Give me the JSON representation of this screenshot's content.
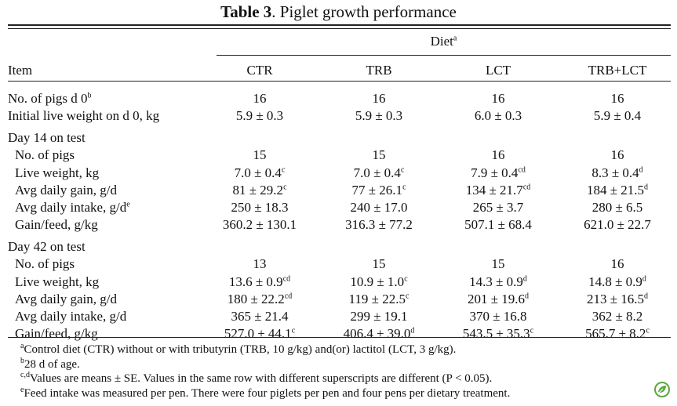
{
  "table": {
    "caption_label": "Table 3",
    "caption_text": ". Piglet growth performance",
    "diet_header": "Diet",
    "diet_header_sup": "a",
    "item_header": "Item",
    "columns": [
      "CTR",
      "TRB",
      "LCT",
      "TRB+LCT"
    ],
    "rows": [
      {
        "label": "No. of pigs d 0",
        "label_sup": "b",
        "indent": false,
        "cells": [
          {
            "v": "16",
            "s": ""
          },
          {
            "v": "16",
            "s": ""
          },
          {
            "v": "16",
            "s": ""
          },
          {
            "v": "16",
            "s": ""
          }
        ]
      },
      {
        "label": "Initial live weight on d 0, kg",
        "label_sup": "",
        "indent": false,
        "cells": [
          {
            "v": "5.9 ± 0.3",
            "s": ""
          },
          {
            "v": "5.9 ± 0.3",
            "s": ""
          },
          {
            "v": "6.0 ± 0.3",
            "s": ""
          },
          {
            "v": "5.9 ± 0.4",
            "s": ""
          }
        ]
      },
      {
        "label": "Day 14 on test",
        "label_sup": "",
        "indent": false,
        "cells": [
          {
            "v": "",
            "s": ""
          },
          {
            "v": "",
            "s": ""
          },
          {
            "v": "",
            "s": ""
          },
          {
            "v": "",
            "s": ""
          }
        ]
      },
      {
        "label": "No. of pigs",
        "label_sup": "",
        "indent": true,
        "cells": [
          {
            "v": "15",
            "s": ""
          },
          {
            "v": "15",
            "s": ""
          },
          {
            "v": "16",
            "s": ""
          },
          {
            "v": "16",
            "s": ""
          }
        ]
      },
      {
        "label": "Live weight, kg",
        "label_sup": "",
        "indent": true,
        "cells": [
          {
            "v": "7.0 ± 0.4",
            "s": "c"
          },
          {
            "v": "7.0 ± 0.4",
            "s": "c"
          },
          {
            "v": "7.9 ± 0.4",
            "s": "cd"
          },
          {
            "v": "8.3 ± 0.4",
            "s": "d"
          }
        ]
      },
      {
        "label": "Avg daily gain, g/d",
        "label_sup": "",
        "indent": true,
        "cells": [
          {
            "v": "81 ± 29.2",
            "s": "c"
          },
          {
            "v": "77 ± 26.1",
            "s": "c"
          },
          {
            "v": "134 ± 21.7",
            "s": "cd"
          },
          {
            "v": "184 ± 21.5",
            "s": "d"
          }
        ]
      },
      {
        "label": "Avg daily intake, g/d",
        "label_sup": "e",
        "indent": true,
        "cells": [
          {
            "v": "250 ± 18.3",
            "s": ""
          },
          {
            "v": "240 ± 17.0",
            "s": ""
          },
          {
            "v": "265 ± 3.7",
            "s": ""
          },
          {
            "v": "280 ± 6.5",
            "s": ""
          }
        ]
      },
      {
        "label": "Gain/feed, g/kg",
        "label_sup": "",
        "indent": true,
        "cells": [
          {
            "v": "360.2 ± 130.1",
            "s": ""
          },
          {
            "v": "316.3 ± 77.2",
            "s": ""
          },
          {
            "v": "507.1 ± 68.4",
            "s": ""
          },
          {
            "v": "621.0 ± 22.7",
            "s": ""
          }
        ]
      },
      {
        "label": "Day 42 on test",
        "label_sup": "",
        "indent": false,
        "cells": [
          {
            "v": "",
            "s": ""
          },
          {
            "v": "",
            "s": ""
          },
          {
            "v": "",
            "s": ""
          },
          {
            "v": "",
            "s": ""
          }
        ]
      },
      {
        "label": "No. of pigs",
        "label_sup": "",
        "indent": true,
        "cells": [
          {
            "v": "13",
            "s": ""
          },
          {
            "v": "15",
            "s": ""
          },
          {
            "v": "15",
            "s": ""
          },
          {
            "v": "16",
            "s": ""
          }
        ]
      },
      {
        "label": "Live weight, kg",
        "label_sup": "",
        "indent": true,
        "cells": [
          {
            "v": "13.6 ± 0.9",
            "s": "cd"
          },
          {
            "v": "10.9 ± 1.0",
            "s": "c"
          },
          {
            "v": "14.3 ± 0.9",
            "s": "d"
          },
          {
            "v": "14.8 ± 0.9",
            "s": "d"
          }
        ]
      },
      {
        "label": "Avg daily gain, g/d",
        "label_sup": "",
        "indent": true,
        "cells": [
          {
            "v": "180 ± 22.2",
            "s": "cd"
          },
          {
            "v": "119 ± 22.5",
            "s": "c"
          },
          {
            "v": "201 ± 19.6",
            "s": "d"
          },
          {
            "v": "213 ± 16.5",
            "s": "d"
          }
        ]
      },
      {
        "label": "Avg daily intake, g/d",
        "label_sup": "",
        "indent": true,
        "cells": [
          {
            "v": "365 ± 21.4",
            "s": ""
          },
          {
            "v": "299 ± 19.1",
            "s": ""
          },
          {
            "v": "370 ± 16.8",
            "s": ""
          },
          {
            "v": "362 ± 8.2",
            "s": ""
          }
        ]
      },
      {
        "label": "Gain/feed, g/kg",
        "label_sup": "",
        "indent": true,
        "cells": [
          {
            "v": "527.0 ± 44.1",
            "s": "c"
          },
          {
            "v": "406.4 ± 39.0",
            "s": "d"
          },
          {
            "v": "543.5 ± 35.3",
            "s": "c"
          },
          {
            "v": "565.7 ± 8.2",
            "s": "c"
          }
        ]
      }
    ],
    "footnotes": [
      {
        "sup": "a",
        "text": "Control diet (CTR) without or with tributyrin (TRB, 10 g/kg) and(or) lactitol (LCT, 3 g/kg)."
      },
      {
        "sup": "b",
        "text": "28 d of age."
      },
      {
        "sup": "c,d",
        "text": "Values are means ± SE. Values in the same row with different superscripts are different (P < 0.05)."
      },
      {
        "sup": "e",
        "text": "Feed intake was measured per pen. There were four piglets per pen and four pens per dietary treatment."
      }
    ]
  },
  "colors": {
    "text": "#111111",
    "badge": "#5aa83c"
  },
  "badge_icon": "leaf-badge-icon"
}
